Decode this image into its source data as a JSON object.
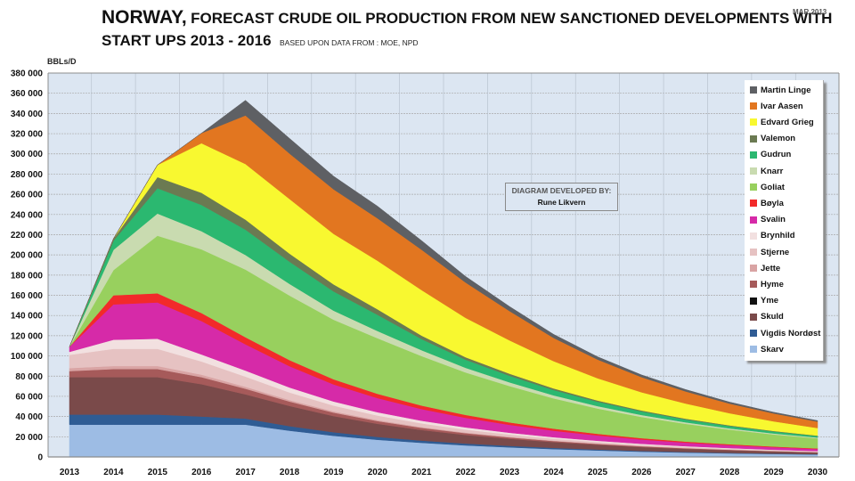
{
  "title": {
    "line1_country": "NORWAY,",
    "line1_rest": "FORECAST CRUDE OIL PRODUCTION FROM NEW SANCTIONED DEVELOPMENTS WITH",
    "line2": "START UPS 2013 - 2016",
    "source": "BASED UPON DATA FROM : MOE, NPD",
    "date": "MAR 2013"
  },
  "credit": {
    "line1": "DIAGRAM DEVELOPED BY:",
    "line2": "Rune Likvern"
  },
  "chart_data": {
    "type": "area",
    "stacked": true,
    "title": "NORWAY, FORECAST CRUDE OIL PRODUCTION FROM NEW SANCTIONED DEVELOPMENTS WITH START UPS 2013 - 2016",
    "xlabel": "",
    "ylabel": "BBLs/D",
    "ylim": [
      0,
      380000
    ],
    "yticks": [
      0,
      20000,
      40000,
      60000,
      80000,
      100000,
      120000,
      140000,
      160000,
      180000,
      200000,
      220000,
      240000,
      260000,
      280000,
      300000,
      320000,
      340000,
      360000,
      380000
    ],
    "ytick_labels": [
      "0",
      "20 000",
      "40 000",
      "60 000",
      "80 000",
      "100 000",
      "120 000",
      "140 000",
      "160 000",
      "180 000",
      "200 000",
      "220 000",
      "240 000",
      "260 000",
      "280 000",
      "300 000",
      "320 000",
      "340 000",
      "360 000",
      "380 000"
    ],
    "categories": [
      "2013",
      "2014",
      "2015",
      "2016",
      "2017",
      "2018",
      "2019",
      "2020",
      "2021",
      "2022",
      "2023",
      "2024",
      "2025",
      "2026",
      "2027",
      "2028",
      "2029",
      "2030"
    ],
    "grid": true,
    "legend_position": "right",
    "series": [
      {
        "name": "Skarv",
        "color": "#9dbce4",
        "values": [
          32000,
          32000,
          32000,
          32000,
          32000,
          26000,
          21000,
          17000,
          14000,
          11500,
          9500,
          7800,
          6400,
          5200,
          4300,
          3500,
          2900,
          2400
        ]
      },
      {
        "name": "Vigdis Nordøst",
        "color": "#2f5c94",
        "values": [
          10000,
          10000,
          10000,
          8000,
          6000,
          4500,
          3500,
          2800,
          2200,
          1800,
          1500,
          1200,
          1000,
          800,
          650,
          550,
          450,
          350
        ]
      },
      {
        "name": "Skuld",
        "color": "#7a4a4a",
        "values": [
          37000,
          37000,
          37000,
          32000,
          24000,
          20000,
          16000,
          13000,
          10500,
          8500,
          7000,
          5700,
          4700,
          3800,
          3100,
          2600,
          2100,
          1700
        ]
      },
      {
        "name": "Yme",
        "color": "#111111",
        "values": [
          0,
          0,
          0,
          0,
          0,
          0,
          0,
          0,
          0,
          0,
          0,
          0,
          0,
          0,
          0,
          0,
          0,
          0
        ]
      },
      {
        "name": "Hyme",
        "color": "#a65a5a",
        "values": [
          6000,
          8000,
          8000,
          7000,
          5500,
          4300,
          3400,
          2700,
          2100,
          1700,
          1400,
          1100,
          900,
          750,
          600,
          500,
          400,
          320
        ]
      },
      {
        "name": "Jette",
        "color": "#d9a4a4",
        "values": [
          3000,
          3000,
          3000,
          2500,
          2000,
          1500,
          1200,
          1000,
          800,
          650,
          500,
          400,
          330,
          270,
          220,
          180,
          140,
          110
        ]
      },
      {
        "name": "Stjerne",
        "color": "#e6c2c2",
        "values": [
          13000,
          17000,
          17000,
          13000,
          10000,
          7500,
          5800,
          4500,
          3600,
          2900,
          2300,
          1900,
          1500,
          1200,
          1000,
          800,
          650,
          530
        ]
      },
      {
        "name": "Brynhild",
        "color": "#f2e0e0",
        "values": [
          3000,
          9000,
          10000,
          7000,
          6000,
          5000,
          4000,
          3300,
          2700,
          2200,
          1800,
          1500,
          1200,
          1000,
          800,
          650,
          530,
          430
        ]
      },
      {
        "name": "Svalin",
        "color": "#d62aa8",
        "values": [
          5000,
          35000,
          36000,
          33000,
          26000,
          21000,
          17000,
          14000,
          11500,
          9500,
          7800,
          6400,
          5300,
          4300,
          3500,
          2900,
          2400,
          2000
        ]
      },
      {
        "name": "Bøyla",
        "color": "#f22a2a",
        "values": [
          0,
          9000,
          9000,
          8000,
          7000,
          6000,
          5000,
          4200,
          3500,
          2900,
          2400,
          2000,
          1600,
          1300,
          1100,
          900,
          750,
          600
        ]
      },
      {
        "name": "Goliat",
        "color": "#98d05e",
        "values": [
          0,
          25000,
          57000,
          63000,
          67000,
          64000,
          59000,
          55000,
          49000,
          42000,
          36000,
          30000,
          25000,
          21000,
          17500,
          14500,
          12000,
          10000
        ]
      },
      {
        "name": "Knarr",
        "color": "#c9dbb0",
        "values": [
          0,
          20000,
          22000,
          18000,
          14500,
          11500,
          9000,
          7200,
          5800,
          4600,
          3700,
          3000,
          2400,
          1900,
          1500,
          1200,
          1000,
          800
        ]
      },
      {
        "name": "Gudrun",
        "color": "#2bb870",
        "values": [
          0,
          9000,
          25000,
          26000,
          25000,
          22000,
          19000,
          16000,
          11000,
          8000,
          6500,
          5300,
          4300,
          3500,
          2800,
          2300,
          1900,
          1500
        ]
      },
      {
        "name": "Valemon",
        "color": "#6b7a52",
        "values": [
          0,
          2000,
          11000,
          12000,
          10000,
          8000,
          7000,
          5500,
          3500,
          2500,
          2000,
          1600,
          1300,
          1000,
          850,
          700,
          550,
          450
        ]
      },
      {
        "name": "Edvard Grieg",
        "color": "#f8f830",
        "values": [
          0,
          0,
          12000,
          49000,
          55000,
          54000,
          50000,
          48000,
          45000,
          39000,
          33000,
          27000,
          22000,
          18000,
          15000,
          12000,
          9500,
          7500
        ]
      },
      {
        "name": "Ivar Aasen",
        "color": "#e27620",
        "values": [
          0,
          0,
          0,
          10000,
          48000,
          45000,
          44000,
          42000,
          40000,
          35000,
          29000,
          23000,
          18500,
          15000,
          12000,
          9500,
          7800,
          6300
        ]
      },
      {
        "name": "Martin Linge",
        "color": "#5e6064",
        "values": [
          0,
          0,
          0,
          0,
          15000,
          15000,
          13000,
          12000,
          9000,
          6000,
          4500,
          3500,
          2800,
          2200,
          1800,
          1500,
          1200,
          1000
        ]
      }
    ]
  },
  "legend": [
    {
      "label": "Martin Linge",
      "color": "#5e6064"
    },
    {
      "label": "Ivar Aasen",
      "color": "#e27620"
    },
    {
      "label": "Edvard Grieg",
      "color": "#f8f830"
    },
    {
      "label": "Valemon",
      "color": "#6b7a52"
    },
    {
      "label": "Gudrun",
      "color": "#2bb870"
    },
    {
      "label": "Knarr",
      "color": "#c9dbb0"
    },
    {
      "label": "Goliat",
      "color": "#98d05e"
    },
    {
      "label": "Bøyla",
      "color": "#f22a2a"
    },
    {
      "label": "Svalin",
      "color": "#d62aa8"
    },
    {
      "label": "Brynhild",
      "color": "#f2e0e0"
    },
    {
      "label": "Stjerne",
      "color": "#e6c2c2"
    },
    {
      "label": "Jette",
      "color": "#d9a4a4"
    },
    {
      "label": "Hyme",
      "color": "#a65a5a"
    },
    {
      "label": "Yme",
      "color": "#111111"
    },
    {
      "label": "Skuld",
      "color": "#7a4a4a"
    },
    {
      "label": "Vigdis Nordøst",
      "color": "#2f5c94"
    },
    {
      "label": "Skarv",
      "color": "#9dbce4"
    }
  ]
}
